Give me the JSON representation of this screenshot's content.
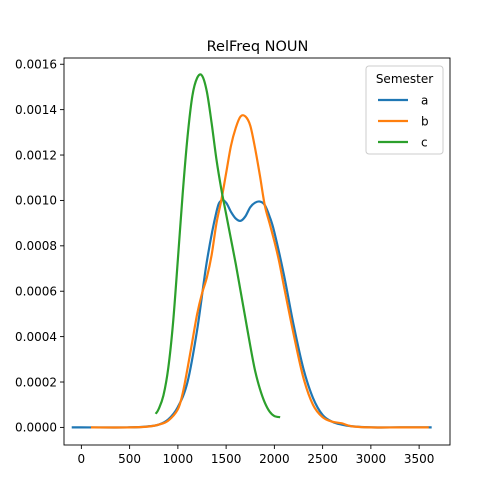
{
  "chart_data": {
    "type": "line",
    "title": "RelFreq NOUN",
    "xlabel": "",
    "ylabel": "",
    "xlim": [
      -180,
      3820
    ],
    "ylim": [
      -7.75e-05,
      0.0016275
    ],
    "xticks": [
      0,
      500,
      1000,
      1500,
      2000,
      2500,
      3000,
      3500
    ],
    "xtick_labels": [
      "0",
      "500",
      "1000",
      "1500",
      "2000",
      "2500",
      "3000",
      "3500"
    ],
    "yticks": [
      0.0,
      0.0002,
      0.0004,
      0.0006,
      0.0008,
      0.001,
      0.0012,
      0.0014,
      0.0016
    ],
    "ytick_labels": [
      "0.0000",
      "0.0002",
      "0.0004",
      "0.0006",
      "0.0008",
      "0.0010",
      "0.0012",
      "0.0014",
      "0.0016"
    ],
    "grid": false,
    "legend": {
      "title": "Semester",
      "placement": "top-right"
    },
    "series": [
      {
        "name": "a",
        "color": "#1f77b4",
        "x": [
          -100,
          0,
          500,
          700,
          800,
          900,
          1000,
          1100,
          1200,
          1300,
          1400,
          1450,
          1500,
          1550,
          1600,
          1650,
          1700,
          1750,
          1800,
          1850,
          1900,
          1950,
          2000,
          2100,
          2200,
          2300,
          2400,
          2500,
          2600,
          2700,
          2800,
          3000,
          3300,
          3550,
          3630
        ],
        "y": [
          0.0,
          0.0,
          0.0,
          5e-06,
          1.2e-05,
          3.5e-05,
          9e-05,
          0.0002,
          0.00043,
          0.00073,
          0.00095,
          0.001,
          0.00099,
          0.00095,
          0.00092,
          0.00091,
          0.00093,
          0.00097,
          0.00099,
          0.000995,
          0.00098,
          0.00093,
          0.00086,
          0.00067,
          0.00045,
          0.00026,
          0.00013,
          5.5e-05,
          2.5e-05,
          1.2e-05,
          5e-06,
          0.0,
          0.0,
          0.0,
          0.0
        ]
      },
      {
        "name": "b",
        "color": "#ff7f0e",
        "x": [
          100,
          500,
          700,
          800,
          900,
          1000,
          1050,
          1100,
          1150,
          1200,
          1250,
          1300,
          1350,
          1400,
          1450,
          1500,
          1550,
          1600,
          1650,
          1700,
          1750,
          1800,
          1850,
          1900,
          1950,
          2000,
          2050,
          2100,
          2200,
          2300,
          2400,
          2500,
          2600,
          2700,
          2800,
          3000,
          3300,
          3600
        ],
        "y": [
          0.0,
          0.0,
          4e-06,
          1.2e-05,
          3e-05,
          8e-05,
          0.00015,
          0.00026,
          0.00038,
          0.0005,
          0.00059,
          0.00066,
          0.00076,
          0.0009,
          0.001,
          0.00112,
          0.00124,
          0.00132,
          0.00137,
          0.00137,
          0.00133,
          0.00123,
          0.00111,
          0.00098,
          0.0009,
          0.00082,
          0.00073,
          0.00062,
          0.00041,
          0.00022,
          0.0001,
          4.5e-05,
          2.5e-05,
          1.8e-05,
          5e-06,
          0.0,
          0.0,
          0.0
        ]
      },
      {
        "name": "c",
        "color": "#2ca02c",
        "x": [
          770,
          800,
          850,
          900,
          950,
          1000,
          1050,
          1100,
          1150,
          1200,
          1250,
          1300,
          1350,
          1400,
          1450,
          1500,
          1550,
          1600,
          1650,
          1700,
          1750,
          1800,
          1850,
          1900,
          1950,
          2000,
          2060
        ],
        "y": [
          6e-05,
          8e-05,
          0.00014,
          0.00026,
          0.00046,
          0.00074,
          0.00103,
          0.00128,
          0.00146,
          0.00154,
          0.00155,
          0.00148,
          0.00134,
          0.00118,
          0.00105,
          0.00094,
          0.00083,
          0.00072,
          0.0006,
          0.00048,
          0.00036,
          0.00025,
          0.00017,
          0.00011,
          7e-05,
          5e-05,
          4.5e-05
        ]
      }
    ]
  }
}
